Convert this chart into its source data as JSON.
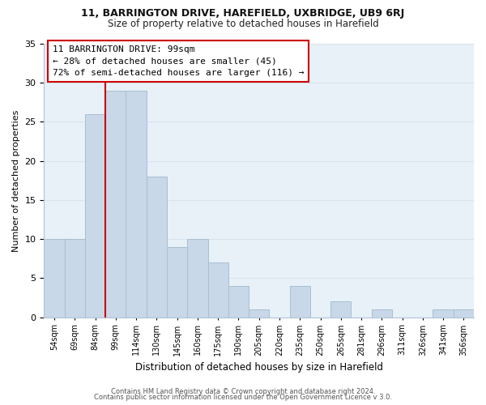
{
  "title1": "11, BARRINGTON DRIVE, HAREFIELD, UXBRIDGE, UB9 6RJ",
  "title2": "Size of property relative to detached houses in Harefield",
  "xlabel": "Distribution of detached houses by size in Harefield",
  "ylabel": "Number of detached properties",
  "bar_labels": [
    "54sqm",
    "69sqm",
    "84sqm",
    "99sqm",
    "114sqm",
    "130sqm",
    "145sqm",
    "160sqm",
    "175sqm",
    "190sqm",
    "205sqm",
    "220sqm",
    "235sqm",
    "250sqm",
    "265sqm",
    "281sqm",
    "296sqm",
    "311sqm",
    "326sqm",
    "341sqm",
    "356sqm"
  ],
  "bar_values": [
    10,
    10,
    26,
    29,
    29,
    18,
    9,
    10,
    7,
    4,
    1,
    0,
    4,
    0,
    2,
    0,
    1,
    0,
    0,
    1,
    1
  ],
  "bar_color": "#c8d8e8",
  "bar_edge_color": "#a8bfd0",
  "property_line_color": "#cc0000",
  "property_line_index": 3,
  "ylim": [
    0,
    35
  ],
  "annotation_line0": "11 BARRINGTON DRIVE: 99sqm",
  "annotation_line1": "← 28% of detached houses are smaller (45)",
  "annotation_line2": "72% of semi-detached houses are larger (116) →",
  "annotation_box_facecolor": "#ffffff",
  "annotation_box_edgecolor": "#cc0000",
  "grid_color": "#d8e4ef",
  "bg_color": "#e8f0f8",
  "footer1": "Contains HM Land Registry data © Crown copyright and database right 2024.",
  "footer2": "Contains public sector information licensed under the Open Government Licence v 3.0."
}
